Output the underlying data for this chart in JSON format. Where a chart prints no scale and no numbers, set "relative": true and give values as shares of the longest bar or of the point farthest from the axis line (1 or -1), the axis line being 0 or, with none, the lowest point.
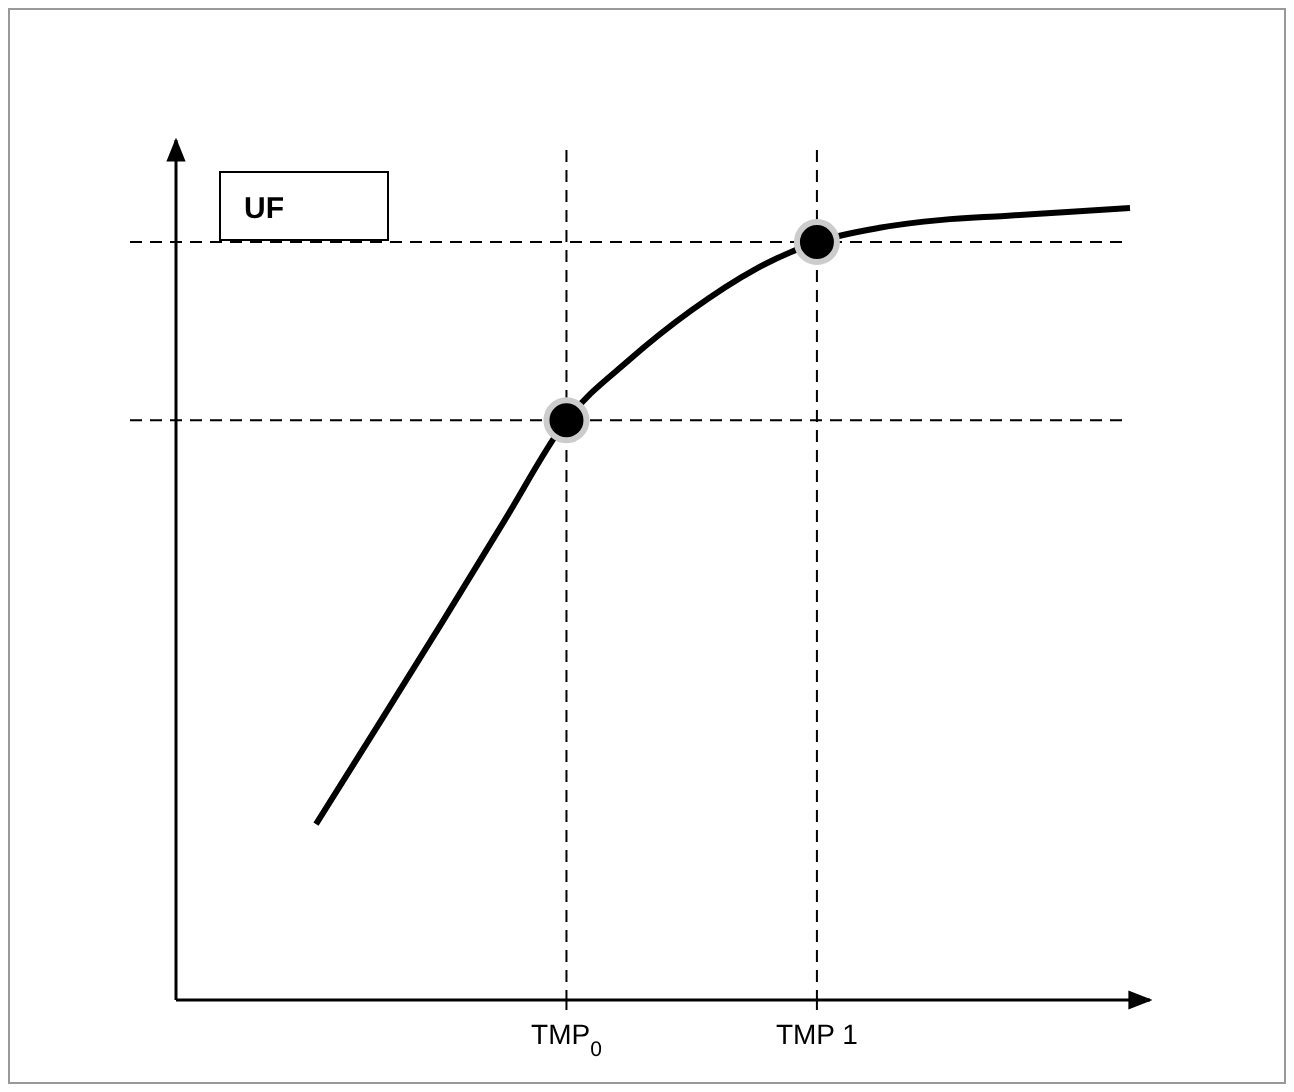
{
  "chart_data": {
    "type": "line",
    "relative": true,
    "ylabel": "UF",
    "categories": [
      null,
      null,
      null,
      null,
      "TMP$_{0}$",
      null,
      null,
      null,
      "TMP 1",
      null,
      null,
      null,
      null,
      null
    ],
    "series": [
      {
        "color": "#000000",
        "values": [
          0.222,
          0.348,
          0.475,
          0.604,
          0.732,
          0.808,
          0.871,
          0.922,
          0.957,
          0.975,
          0.985,
          0.99,
          0.995,
          1
        ]
      },
      {
        "type": "scatter",
        "color": "#000000",
        "marker": "circle",
        "x": [
          "TMP$_{0}$",
          "TMP 1"
        ],
        "values": [
          0.732,
          0.957
        ]
      }
    ],
    "ref_lines": [
      {
        "axis": "y",
        "value": 0.732,
        "line_style": "dashed",
        "color": "#000000"
      },
      {
        "axis": "y",
        "value": 0.957,
        "line_style": "dashed",
        "color": "#000000"
      },
      {
        "axis": "x",
        "value": "TMP$_{0}$",
        "line_style": "dashed",
        "color": "#000000"
      },
      {
        "axis": "x",
        "value": "TMP 1",
        "line_style": "dashed",
        "color": "#000000"
      }
    ]
  }
}
